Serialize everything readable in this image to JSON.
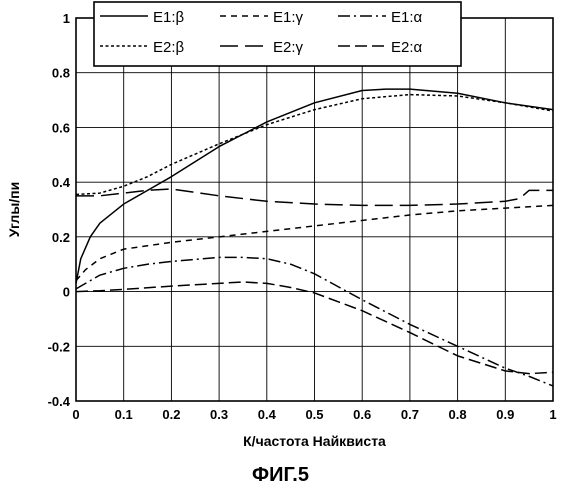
{
  "chart_data": {
    "type": "line",
    "title": "",
    "xlabel": "К/частота Найквиста",
    "ylabel": "Углы/пи",
    "xlim": [
      0,
      1
    ],
    "ylim": [
      -0.4,
      1
    ],
    "x_ticks": [
      "0",
      "0.1",
      "0.2",
      "0.3",
      "0.4",
      "0.5",
      "0.6",
      "0.7",
      "0.8",
      "0.9",
      "1"
    ],
    "y_ticks": [
      "-0.4",
      "-0.2",
      "0",
      "0.2",
      "0.4",
      "0.6",
      "0.8",
      "1"
    ],
    "grid": true,
    "legend_position": "top",
    "series": [
      {
        "name": "E1:β",
        "style": "solid",
        "x": [
          0,
          0.01,
          0.03,
          0.05,
          0.1,
          0.15,
          0.2,
          0.3,
          0.4,
          0.5,
          0.6,
          0.65,
          0.7,
          0.8,
          0.9,
          1.0
        ],
        "y": [
          0.03,
          0.12,
          0.2,
          0.25,
          0.32,
          0.37,
          0.42,
          0.53,
          0.62,
          0.69,
          0.735,
          0.74,
          0.74,
          0.725,
          0.69,
          0.665
        ]
      },
      {
        "name": "E1:γ",
        "style": "short-dash",
        "x": [
          0,
          0.02,
          0.05,
          0.1,
          0.2,
          0.3,
          0.4,
          0.5,
          0.6,
          0.7,
          0.8,
          0.9,
          1.0
        ],
        "y": [
          0.04,
          0.08,
          0.12,
          0.155,
          0.18,
          0.2,
          0.22,
          0.24,
          0.26,
          0.28,
          0.295,
          0.305,
          0.315
        ]
      },
      {
        "name": "E1:α",
        "style": "dash-dot",
        "x": [
          0,
          0.02,
          0.05,
          0.1,
          0.15,
          0.2,
          0.3,
          0.35,
          0.4,
          0.45,
          0.5,
          0.6,
          0.7,
          0.8,
          0.9,
          0.95,
          1.0
        ],
        "y": [
          0.01,
          0.03,
          0.06,
          0.085,
          0.1,
          0.11,
          0.125,
          0.125,
          0.12,
          0.1,
          0.065,
          -0.03,
          -0.12,
          -0.2,
          -0.28,
          -0.31,
          -0.345
        ]
      },
      {
        "name": "E2:β",
        "style": "dotted",
        "x": [
          0,
          0.05,
          0.1,
          0.15,
          0.2,
          0.3,
          0.4,
          0.5,
          0.6,
          0.7,
          0.8,
          0.9,
          1.0
        ],
        "y": [
          0.355,
          0.36,
          0.385,
          0.42,
          0.465,
          0.54,
          0.61,
          0.665,
          0.705,
          0.72,
          0.715,
          0.69,
          0.66
        ]
      },
      {
        "name": "E2:γ",
        "style": "long-dash",
        "x": [
          0,
          0.05,
          0.1,
          0.15,
          0.2,
          0.3,
          0.4,
          0.5,
          0.6,
          0.7,
          0.8,
          0.9,
          0.93,
          0.95,
          1.0
        ],
        "y": [
          0.35,
          0.35,
          0.36,
          0.37,
          0.375,
          0.35,
          0.33,
          0.32,
          0.315,
          0.315,
          0.32,
          0.33,
          0.34,
          0.37,
          0.37
        ]
      },
      {
        "name": "E2:α",
        "style": "dash-dash",
        "x": [
          0,
          0.05,
          0.1,
          0.2,
          0.3,
          0.35,
          0.4,
          0.45,
          0.5,
          0.6,
          0.7,
          0.8,
          0.9,
          0.95,
          1.0
        ],
        "y": [
          0.0,
          0.003,
          0.008,
          0.02,
          0.03,
          0.035,
          0.03,
          0.015,
          -0.005,
          -0.07,
          -0.15,
          -0.235,
          -0.29,
          -0.3,
          -0.295
        ]
      }
    ]
  },
  "figure_label": "ФИГ.5"
}
